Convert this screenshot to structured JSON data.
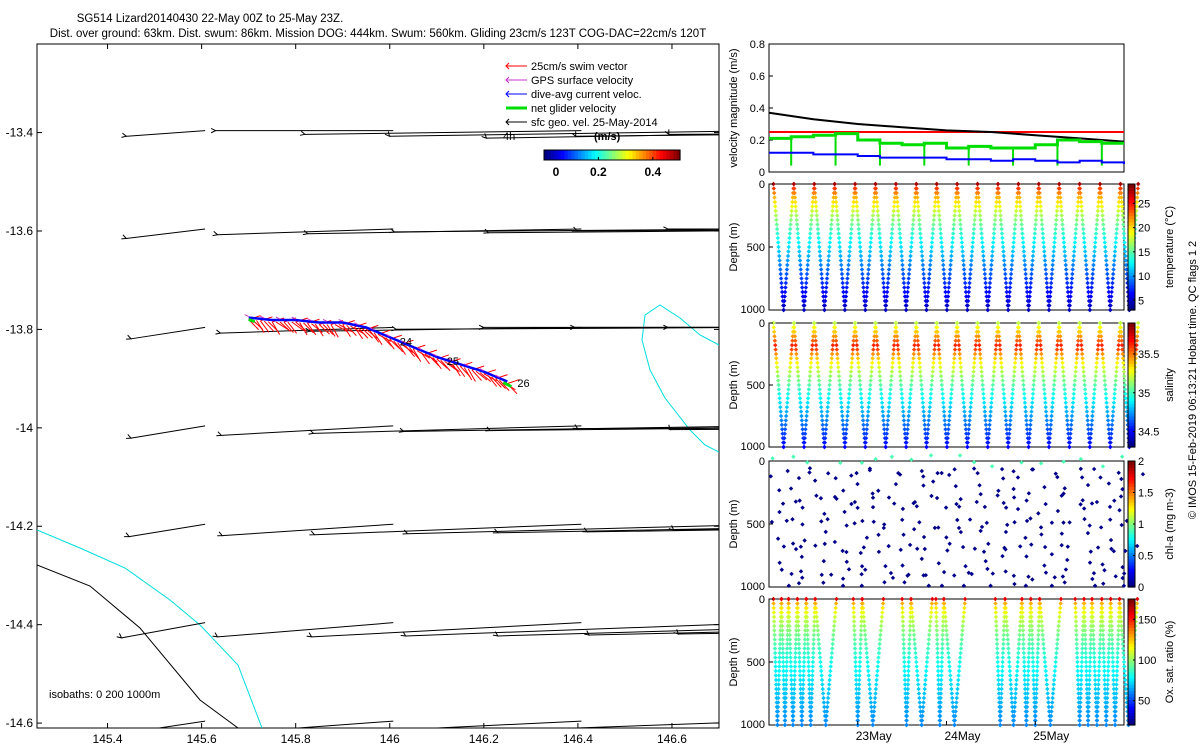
{
  "header": {
    "title": "SG514 Lizard20140430 22-May 00Z to 25-May 23Z.",
    "subtitle": "Dist. over ground: 63km. Dist. swum: 86km. Mission DOG: 444km. Swum: 560km. Gliding 23cm/s 123T COG-DAC=22cm/s 120T"
  },
  "side_text": "© IMOS 15-Feb-2019 06:13:21 Hobart time. QC flags 1  2",
  "colors": {
    "swim": "#ff0000",
    "gps": "#cc33cc",
    "dac": "#0000ff",
    "net": "#00dd00",
    "geo": "#000000",
    "isobath_0": "#000000",
    "isobath_200": "#00dddd"
  },
  "chart_data": [
    {
      "type": "scatter",
      "title": "",
      "xlim": [
        145.25,
        146.7
      ],
      "ylim": [
        -14.61,
        -13.22
      ],
      "xticks": [
        145.4,
        145.6,
        145.8,
        146,
        146.2,
        146.4,
        146.6
      ],
      "xtick_labels": [
        "145.4",
        "145.6",
        "145.8",
        "146",
        "146.2",
        "146.4",
        "146.6"
      ],
      "yticks": [
        -13.4,
        -13.6,
        -13.8,
        -14,
        -14.2,
        -14.4,
        -14.6
      ],
      "ytick_labels": [
        "-13.4",
        "-13.6",
        "-13.8",
        "-14",
        "-14.2",
        "-14.4",
        "-14.6"
      ],
      "legend": {
        "position": "top-right",
        "entries": [
          "25cm/s swim vector",
          "GPS surface velocity",
          "dive-avg current veloc.",
          "net glider velocity",
          "sfc geo. vel. 25-May-2014"
        ]
      },
      "vector_scale_label": "4h",
      "colorbar": {
        "label": "(m/s)",
        "ticks": [
          "0",
          "0.2",
          "0.4"
        ],
        "range": [
          0,
          0.5
        ]
      },
      "isobath_label": "isobaths: 0   200  1000m",
      "track": {
        "lon": [
          145.7,
          145.75,
          145.8,
          145.85,
          145.9,
          145.95,
          146.0,
          146.05,
          146.1,
          146.15,
          146.2,
          146.25
        ],
        "lat": [
          -13.78,
          -13.785,
          -13.785,
          -13.79,
          -13.79,
          -13.8,
          -13.82,
          -13.84,
          -13.86,
          -13.875,
          -13.89,
          -13.91
        ],
        "day_labels": [
          {
            "text": "24",
            "lon": 146.0,
            "lat": -13.82
          },
          {
            "text": "25",
            "lon": 146.1,
            "lat": -13.86
          },
          {
            "text": "26",
            "lon": 146.25,
            "lat": -13.905
          }
        ]
      },
      "geo_vectors": {
        "lon": [
          145.4,
          145.6,
          145.8,
          146.0,
          146.2,
          146.4,
          146.6
        ],
        "lat": [
          -13.4,
          -13.6,
          -13.8,
          -14.0,
          -14.2,
          -14.4,
          -14.6
        ],
        "u": [
          [
            -0.25,
            -0.2,
            -0.15,
            -0.05,
            -0.08,
            -0.03,
            -0.02
          ],
          [
            -0.25,
            -0.22,
            -0.18,
            -0.1,
            -0.1,
            -0.04,
            -0.01
          ],
          [
            -0.3,
            -0.25,
            -0.2,
            -0.12,
            -0.05,
            -0.02,
            -0.01
          ],
          [
            -0.3,
            -0.26,
            -0.24,
            -0.2,
            -0.12,
            -0.05,
            -0.03
          ],
          [
            -0.28,
            -0.27,
            -0.25,
            -0.24,
            -0.2,
            -0.15,
            -0.07
          ],
          [
            -0.2,
            -0.22,
            -0.22,
            -0.22,
            -0.2,
            -0.17,
            -0.12
          ],
          [
            -0.15,
            -0.15,
            -0.15,
            -0.15,
            -0.15,
            -0.15,
            -0.15
          ]
        ],
        "v": [
          [
            0.06,
            0.0,
            0.04,
            0.06,
            0.08,
            0.06,
            0.04
          ],
          [
            0.1,
            0.06,
            0.05,
            0.03,
            0.04,
            0.02,
            0.0
          ],
          [
            0.12,
            0.06,
            0.04,
            0.02,
            0.0,
            0.0,
            0.0
          ],
          [
            0.13,
            0.1,
            0.08,
            0.06,
            0.05,
            0.03,
            0.04
          ],
          [
            0.13,
            0.12,
            0.11,
            0.1,
            0.09,
            0.08,
            0.06
          ],
          [
            0.16,
            0.15,
            0.15,
            0.14,
            0.14,
            0.13,
            0.12
          ],
          [
            0.14,
            0.14,
            0.14,
            0.14,
            0.14,
            0.14,
            0.14
          ]
        ]
      }
    },
    {
      "type": "line",
      "ylabel": "velocity magnitude (m/s)",
      "ylim": [
        0,
        0.8
      ],
      "yticks": [
        0,
        0.2,
        0.4,
        0.6,
        0.8
      ],
      "ytick_labels": [
        "0",
        "0.2",
        "0.4",
        "0.6",
        "0.8"
      ],
      "xlim": [
        22.0,
        26.0
      ],
      "series": [
        {
          "color": "#ff0000",
          "x": [
            22.0,
            26.0
          ],
          "y": [
            0.25,
            0.25
          ]
        },
        {
          "color": "#000000",
          "x": [
            22.0,
            22.5,
            23.0,
            23.5,
            24.0,
            24.5,
            25.0,
            25.5,
            26.0
          ],
          "y": [
            0.37,
            0.33,
            0.3,
            0.28,
            0.26,
            0.25,
            0.23,
            0.21,
            0.19
          ]
        },
        {
          "color": "#00dd00",
          "x": [
            22.0,
            22.25,
            22.5,
            22.75,
            23.0,
            23.25,
            23.5,
            23.75,
            24.0,
            24.25,
            24.5,
            24.75,
            25.0,
            25.25,
            25.5,
            25.75,
            26.0
          ],
          "y": [
            0.21,
            0.22,
            0.23,
            0.24,
            0.2,
            0.18,
            0.17,
            0.18,
            0.15,
            0.16,
            0.15,
            0.15,
            0.17,
            0.2,
            0.19,
            0.18,
            0.18
          ]
        },
        {
          "color": "#0000ff",
          "x": [
            22.0,
            22.25,
            22.5,
            22.75,
            23.0,
            23.25,
            23.5,
            23.75,
            24.0,
            24.25,
            24.5,
            24.75,
            25.0,
            25.25,
            25.5,
            25.75,
            26.0
          ],
          "y": [
            0.12,
            0.12,
            0.11,
            0.11,
            0.1,
            0.09,
            0.09,
            0.09,
            0.08,
            0.08,
            0.07,
            0.08,
            0.07,
            0.06,
            0.07,
            0.06,
            0.05
          ]
        }
      ]
    },
    {
      "type": "scatter",
      "variable": "temperature",
      "ylabel": "Depth (m)",
      "yticks": [
        0,
        500,
        1000
      ],
      "ytick_labels": [
        "0",
        "500",
        "1000"
      ],
      "ylim": [
        0,
        1000
      ],
      "colorbar": {
        "label": "temperature (°C)",
        "ticks": [
          "5",
          "10",
          "15",
          "20",
          "25"
        ],
        "range": [
          3,
          29
        ]
      },
      "profile_days": [
        22.05,
        22.28,
        22.51,
        22.74,
        22.97,
        23.2,
        23.43,
        23.66,
        23.89,
        24.12,
        24.35,
        24.58,
        24.81,
        25.04,
        25.27,
        25.5,
        25.73,
        25.96
      ],
      "max_depth": 1000,
      "surface_value": 28,
      "deep_value": 4.5
    },
    {
      "type": "scatter",
      "variable": "salinity",
      "ylabel": "Depth (m)",
      "yticks": [
        0,
        500,
        1000
      ],
      "ytick_labels": [
        "0",
        "500",
        "1000"
      ],
      "ylim": [
        0,
        1000
      ],
      "colorbar": {
        "label": "salinity",
        "ticks": [
          "34.5",
          "35",
          "35.5"
        ],
        "range": [
          34.3,
          35.9
        ]
      },
      "profile_days": [
        22.05,
        22.28,
        22.51,
        22.74,
        22.97,
        23.2,
        23.43,
        23.66,
        23.89,
        24.12,
        24.35,
        24.58,
        24.81,
        25.04,
        25.27,
        25.5,
        25.73,
        25.96
      ],
      "max_depth": 1000,
      "surface_value": 35.2,
      "mid_value": 35.7,
      "deep_value": 34.5
    },
    {
      "type": "scatter",
      "variable": "chl-a",
      "ylabel": "Depth (m)",
      "yticks": [
        0,
        500,
        1000
      ],
      "ytick_labels": [
        "0",
        "500",
        "1000"
      ],
      "ylim": [
        0,
        1000
      ],
      "colorbar": {
        "label": "chl-a (mg m-3)",
        "ticks": [
          "0",
          "0.5",
          "1",
          "1.5",
          "2"
        ],
        "range": [
          0,
          2
        ]
      },
      "profile_days": [
        22.05,
        22.28,
        22.51,
        22.74,
        22.97,
        23.2,
        23.43,
        23.66,
        23.89,
        24.12,
        24.35,
        24.58,
        24.81,
        25.04,
        25.27,
        25.5,
        25.73,
        25.96
      ],
      "max_depth": 1000
    },
    {
      "type": "scatter",
      "variable": "oxygen",
      "ylabel": "Depth (m)",
      "yticks": [
        0,
        500,
        1000
      ],
      "ytick_labels": [
        "0",
        "500",
        "1000"
      ],
      "ylim": [
        0,
        1000
      ],
      "xlabel": "",
      "xticks": [
        23,
        24,
        25
      ],
      "xtick_labels": [
        "23May",
        "24May",
        "25May"
      ],
      "colorbar": {
        "label": "Ox. sat. ratio (%)",
        "ticks": [
          "50",
          "100",
          "150"
        ],
        "range": [
          20,
          175
        ]
      },
      "profile_days": [
        22.05,
        22.14,
        22.22,
        22.32,
        22.42,
        22.52,
        22.95,
        23.05,
        23.5,
        23.6,
        23.88,
        23.97,
        24.55,
        24.66,
        24.85,
        24.95,
        25.05,
        25.45,
        25.55,
        25.64,
        25.75,
        25.85,
        25.95
      ],
      "max_depth": 1000,
      "surface_value": 160,
      "deep_value": 60
    }
  ]
}
